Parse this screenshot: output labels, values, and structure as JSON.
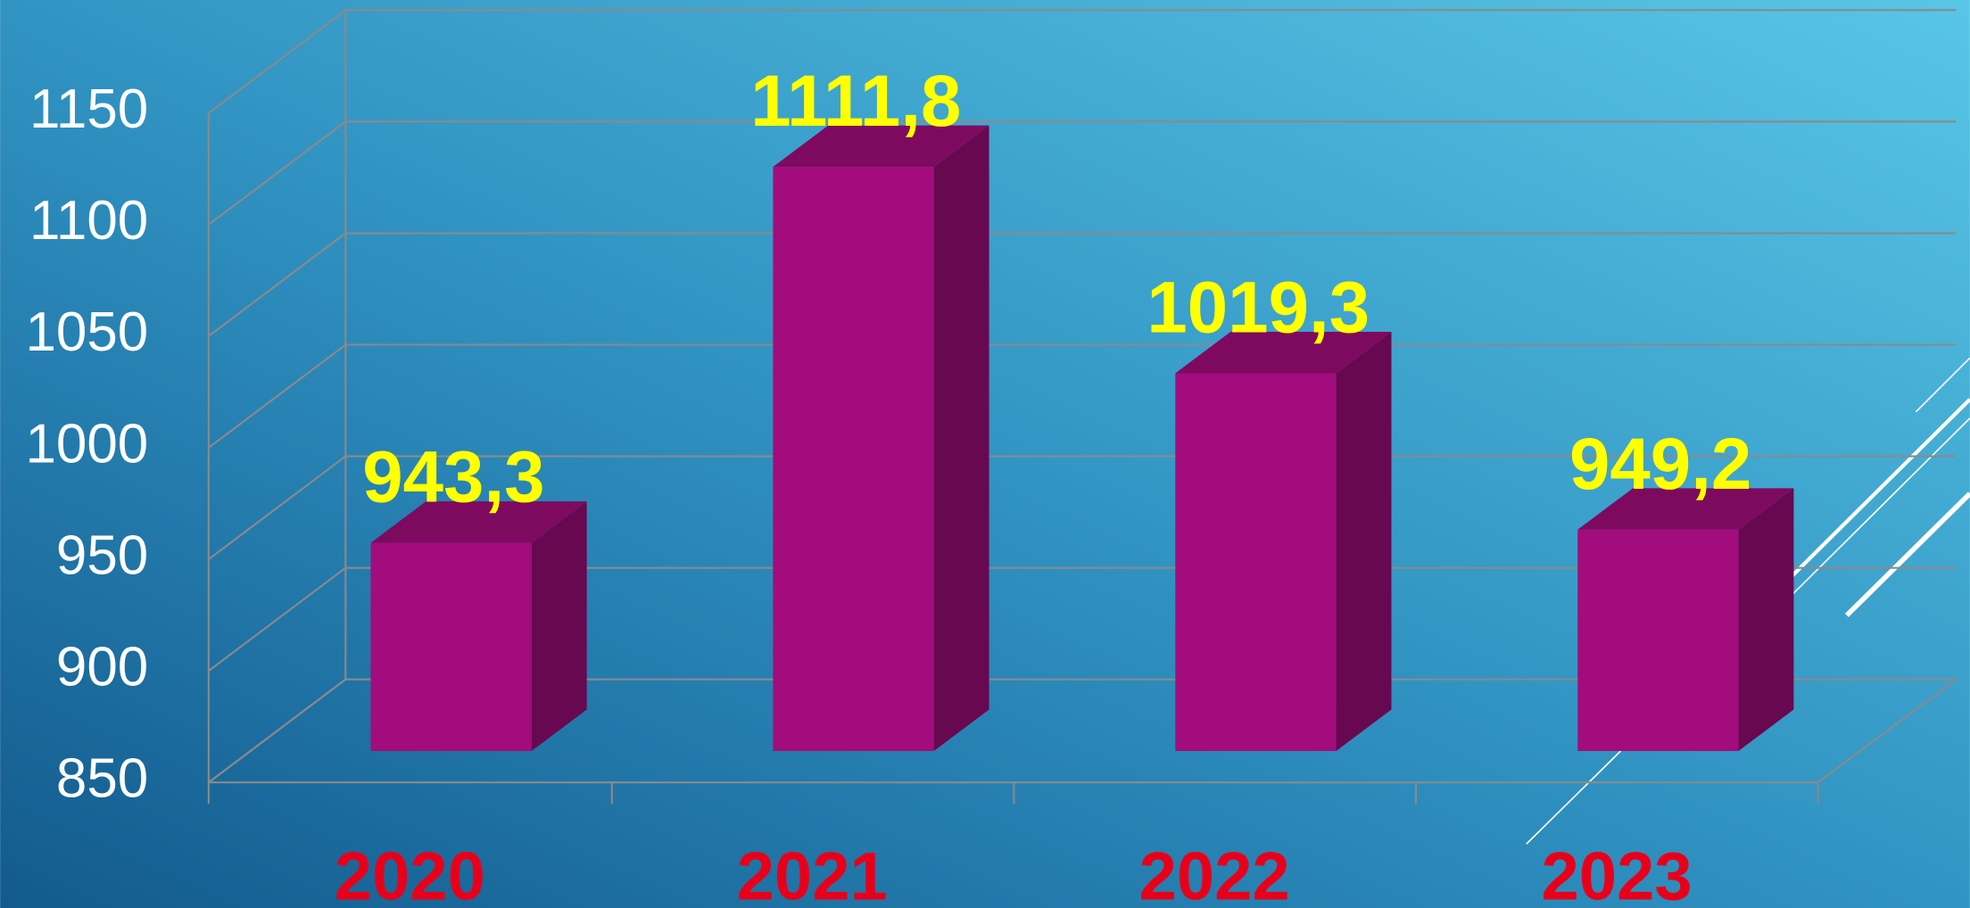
{
  "chart_data": {
    "type": "bar3d",
    "categories": [
      "2020",
      "2021",
      "2022",
      "2023"
    ],
    "values": [
      943.3,
      1111.8,
      1019.3,
      949.2
    ],
    "value_labels": [
      "943,3",
      "1111,8",
      "1019,3",
      "949,2"
    ],
    "color": "#a20c7c",
    "ylim": [
      850,
      1150
    ],
    "yticks": [
      850,
      900,
      950,
      1000,
      1050,
      1100,
      1150
    ],
    "grid": true
  }
}
